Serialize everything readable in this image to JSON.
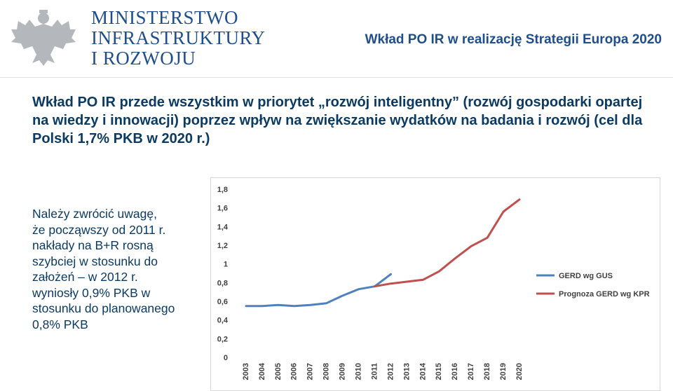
{
  "header": {
    "logo": {
      "lines": [
        "MINISTERSTWO",
        "INFRASTRUKTURY",
        "I ROZWOJU"
      ],
      "icon": "eagle-emblem-icon",
      "color": "#1f4e8c"
    },
    "title": "Wkład PO IR w realizację Strategii Europa 2020"
  },
  "main": {
    "statement": "Wkład PO IR przede wszystkim w priorytet „rozwój inteligentny” (rozwój gospodarki opartej na wiedzy i innowacji) poprzez wpływ na zwiększanie wydatków na badania i rozwój (cel dla Polski 1,7% PKB w 2020 r.)",
    "note_lines": [
      "Należy zwrócić uwagę,",
      "że począwszy od 2011 r.",
      "nakłady na B+R rosną",
      "szybciej w stosunku do",
      "założeń – w 2012 r.",
      "wyniosły 0,9% PKB w",
      "stosunku do planowanego",
      "0,8% PKB"
    ]
  },
  "chart_data": {
    "type": "line",
    "x": [
      2003,
      2004,
      2005,
      2006,
      2007,
      2008,
      2009,
      2010,
      2011,
      2012,
      2013,
      2014,
      2015,
      2016,
      2017,
      2018,
      2019,
      2020
    ],
    "x_tick_labels": [
      "2003",
      "2004",
      "2005",
      "2006",
      "2007",
      "2008",
      "2009",
      "2010",
      "2011",
      "2012",
      "2013",
      "2014",
      "2015",
      "2016",
      "2017",
      "2018",
      "2019",
      "2020"
    ],
    "ylim": [
      0,
      1.8
    ],
    "y_ticks": [
      0,
      0.2,
      0.4,
      0.6,
      0.8,
      1,
      1.2,
      1.4,
      1.6,
      1.8
    ],
    "y_tick_labels": [
      "0",
      "0,2",
      "0,4",
      "0,6",
      "0,8",
      "1",
      "1,2",
      "1,4",
      "1,6",
      "1,8"
    ],
    "grid": false,
    "legend_position": "right",
    "series": [
      {
        "name": "GERD wg GUS",
        "color": "#4f81bd",
        "points": [
          [
            2003,
            0.55
          ],
          [
            2004,
            0.55
          ],
          [
            2005,
            0.56
          ],
          [
            2006,
            0.55
          ],
          [
            2007,
            0.56
          ],
          [
            2008,
            0.58
          ],
          [
            2009,
            0.66
          ],
          [
            2010,
            0.73
          ],
          [
            2011,
            0.76
          ],
          [
            2012,
            0.89
          ]
        ]
      },
      {
        "name": "Prognoza GERD wg KPR",
        "color": "#c0504d",
        "points": [
          [
            2011,
            0.76
          ],
          [
            2012,
            0.79
          ],
          [
            2013,
            0.81
          ],
          [
            2014,
            0.83
          ],
          [
            2015,
            0.92
          ],
          [
            2016,
            1.06
          ],
          [
            2017,
            1.19
          ],
          [
            2018,
            1.28
          ],
          [
            2019,
            1.56
          ],
          [
            2020,
            1.69
          ]
        ]
      }
    ]
  }
}
